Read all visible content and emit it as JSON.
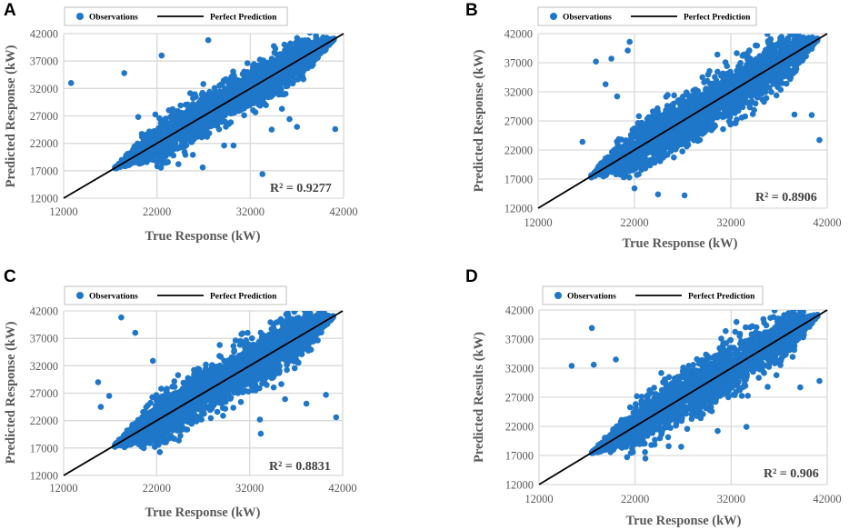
{
  "colors": {
    "observations": "#1f77c9",
    "perfect_prediction": "#000000",
    "grid": "#d9d9d9",
    "axis_text": "#595959"
  },
  "chart_data": [
    {
      "panel": "A",
      "type": "scatter",
      "legend": [
        "Observations",
        "Perfect Prediction"
      ],
      "legend_position": "top",
      "xlabel": "True Response (kW)",
      "ylabel": "Predicted Response (kW)",
      "x_ticks": [
        "12000",
        "22000",
        "32000",
        "42000"
      ],
      "y_ticks": [
        "12000",
        "17000",
        "22000",
        "27000",
        "32000",
        "37000",
        "42000"
      ],
      "xlim": [
        12000,
        42000
      ],
      "ylim": [
        12000,
        42000
      ],
      "r2_label": "R² = 0.9277",
      "cloud": {
        "x_range": [
          17500,
          41000
        ],
        "spread": 3500
      },
      "outliers": [
        [
          12800,
          33000
        ],
        [
          18500,
          34800
        ],
        [
          22500,
          38000
        ],
        [
          27500,
          40800
        ],
        [
          20000,
          26800
        ],
        [
          24300,
          18200
        ],
        [
          26900,
          17600
        ],
        [
          29200,
          21600
        ],
        [
          30200,
          21600
        ],
        [
          33300,
          16400
        ],
        [
          34300,
          24500
        ],
        [
          35400,
          28300
        ],
        [
          36200,
          26400
        ],
        [
          37000,
          25000
        ],
        [
          41100,
          24600
        ]
      ]
    },
    {
      "panel": "B",
      "type": "scatter",
      "legend": [
        "Observations",
        "Perfect Prediction"
      ],
      "legend_position": "top",
      "xlabel": "True Response (kW)",
      "ylabel": "Predicted Response (kW)",
      "x_ticks": [
        "12000",
        "22000",
        "32000",
        "42000"
      ],
      "y_ticks": [
        "12000",
        "17000",
        "22000",
        "27000",
        "32000",
        "37000",
        "42000"
      ],
      "xlim": [
        12000,
        42000
      ],
      "ylim": [
        12000,
        42000
      ],
      "r2_label": "R² = 0.8906",
      "cloud": {
        "x_range": [
          17500,
          41000
        ],
        "spread": 4200
      },
      "outliers": [
        [
          16600,
          23400
        ],
        [
          18000,
          37200
        ],
        [
          19000,
          33300
        ],
        [
          19600,
          37700
        ],
        [
          20200,
          31200
        ],
        [
          21300,
          39100
        ],
        [
          21500,
          40600
        ],
        [
          22000,
          15400
        ],
        [
          27200,
          14200
        ],
        [
          30600,
          38400
        ],
        [
          38600,
          28100
        ],
        [
          40400,
          28000
        ],
        [
          41200,
          23700
        ]
      ]
    },
    {
      "panel": "C",
      "type": "scatter",
      "legend": [
        "Observations",
        "Perfect Prediction"
      ],
      "legend_position": "top",
      "xlabel": "True Response (kW)",
      "ylabel": "Predicted Response (kW)",
      "x_ticks": [
        "12000",
        "22000",
        "32000",
        "42000"
      ],
      "y_ticks": [
        "12000",
        "17000",
        "22000",
        "27000",
        "32000",
        "37000",
        "42000"
      ],
      "xlim": [
        12000,
        42000
      ],
      "ylim": [
        12000,
        42000
      ],
      "r2_label": "R² = 0.8831",
      "cloud": {
        "x_range": [
          17500,
          41000
        ],
        "spread": 4400
      },
      "outliers": [
        [
          15700,
          29000
        ],
        [
          16000,
          24500
        ],
        [
          16900,
          26500
        ],
        [
          18200,
          40800
        ],
        [
          19700,
          38000
        ],
        [
          20400,
          17200
        ],
        [
          21800,
          17200
        ],
        [
          21600,
          32900
        ],
        [
          22200,
          17600
        ],
        [
          33100,
          22200
        ],
        [
          33200,
          19600
        ],
        [
          35800,
          25900
        ],
        [
          38100,
          25100
        ],
        [
          40200,
          26700
        ],
        [
          41300,
          22600
        ]
      ]
    },
    {
      "panel": "D",
      "type": "scatter",
      "legend": [
        "Observations",
        "Perfect Prediction"
      ],
      "legend_position": "top",
      "xlabel": "True Response (kW)",
      "ylabel": "Predicted Results (kW)",
      "x_ticks": [
        "12000",
        "22000",
        "32000",
        "42000"
      ],
      "y_ticks": [
        "12000",
        "17000",
        "22000",
        "27000",
        "32000",
        "37000",
        "42000"
      ],
      "xlim": [
        12000,
        42000
      ],
      "ylim": [
        12000,
        42000
      ],
      "r2_label": "R² = 0.906",
      "cloud": {
        "x_range": [
          17500,
          41000
        ],
        "spread": 3900
      },
      "outliers": [
        [
          15400,
          32400
        ],
        [
          17500,
          38900
        ],
        [
          17700,
          32600
        ],
        [
          20000,
          33500
        ],
        [
          23700,
          18800
        ],
        [
          25500,
          18600
        ],
        [
          26800,
          18500
        ],
        [
          30600,
          21200
        ],
        [
          33600,
          21900
        ],
        [
          35800,
          28800
        ],
        [
          39200,
          28700
        ],
        [
          41200,
          29800
        ]
      ]
    }
  ]
}
